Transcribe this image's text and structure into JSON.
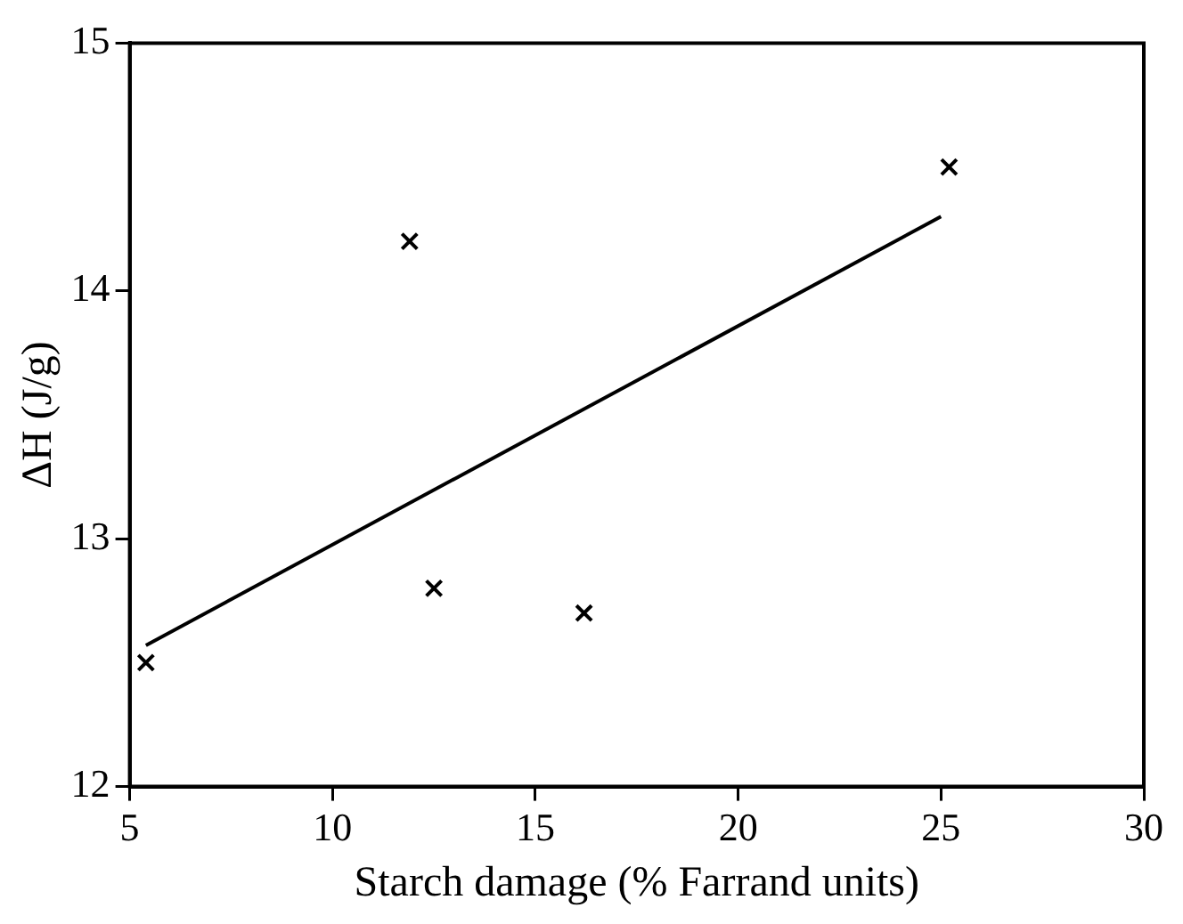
{
  "chart_data": {
    "type": "scatter",
    "xlabel": "Starch damage (% Farrand units)",
    "ylabel": "ΔH (J/g)",
    "xlim": [
      5,
      30
    ],
    "xticks": [
      5,
      10,
      15,
      20,
      25,
      30
    ],
    "ylim": [
      12,
      15
    ],
    "yticks": [
      12,
      13,
      14,
      15
    ],
    "grid": false,
    "legend": false,
    "series": [
      {
        "type": "scatter",
        "color": "#000000",
        "marker": "cross",
        "x": [
          5.4,
          11.9,
          12.5,
          16.2,
          25.2
        ],
        "values": [
          12.5,
          14.2,
          12.8,
          12.7,
          14.5
        ]
      },
      {
        "type": "line",
        "color": "#000000",
        "marker": "none",
        "x": [
          5.4,
          25
        ],
        "values": [
          12.57,
          14.3
        ]
      }
    ]
  }
}
